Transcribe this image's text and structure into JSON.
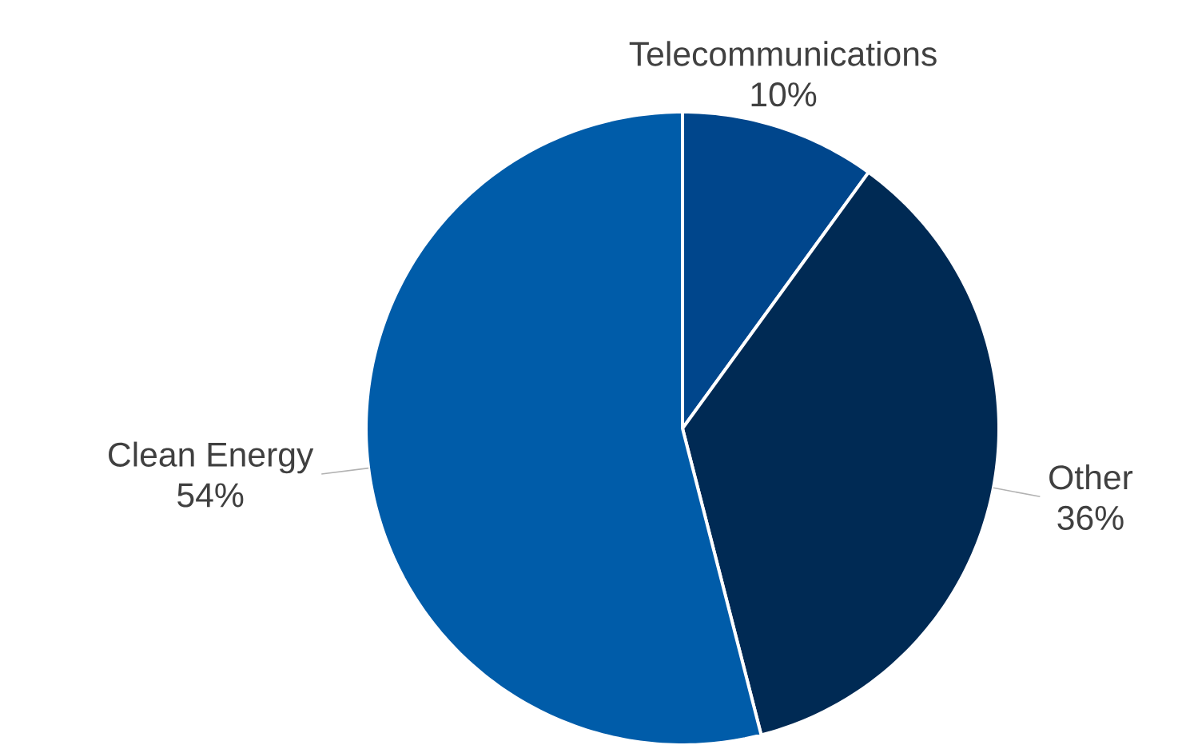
{
  "chart_data": {
    "type": "pie",
    "categories": [
      "Telecommunications",
      "Other",
      "Clean Energy"
    ],
    "values": [
      10,
      36,
      54
    ],
    "value_labels": [
      "10%",
      "36%",
      "54%"
    ],
    "colors": [
      "#00468c",
      "#002a54",
      "#005ca9"
    ]
  }
}
